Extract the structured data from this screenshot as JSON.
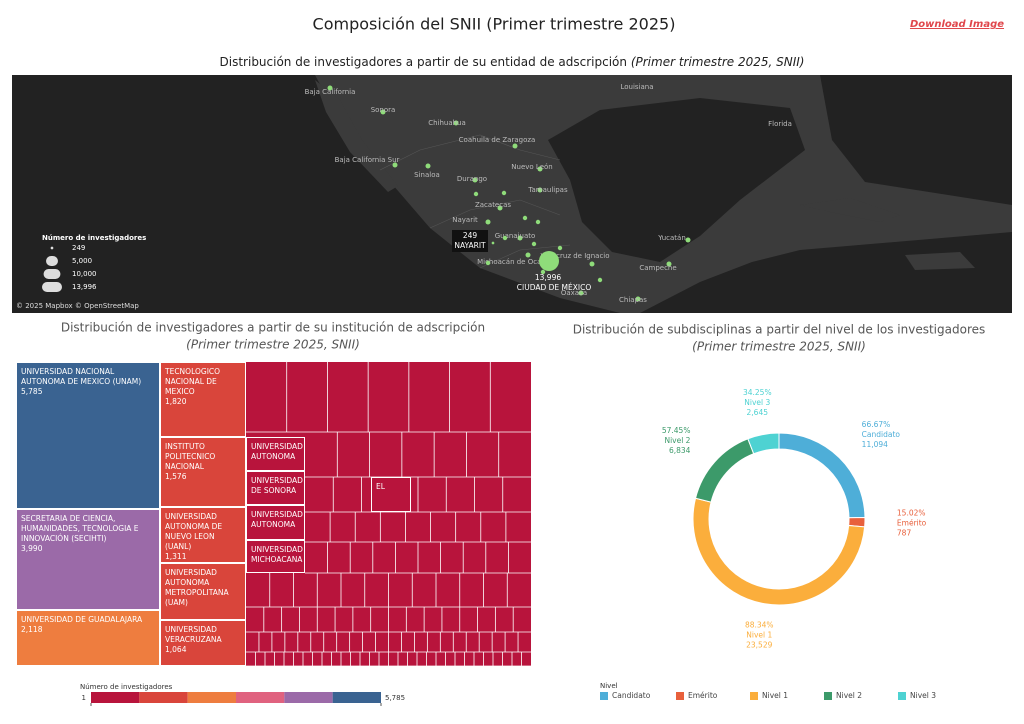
{
  "header": {
    "title": "Composición del SNII (Primer trimestre 2025)",
    "download": "Download Image"
  },
  "chart_data": [
    {
      "type": "map",
      "title": "Distribución de investigadores a partir de su entidad de adscripción",
      "title_note": "(Primer trimestre 2025, SNII)",
      "places": [
        "Baja California",
        "Sonora",
        "Chihuahua",
        "Coahuila de Zaragoza",
        "Nuevo León",
        "Baja California Sur",
        "Sinaloa",
        "Durango",
        "Tamaulipas",
        "Zacatecas",
        "Nayarit",
        "Guanajuato",
        "Michoacán de Ocampo",
        "Veracruz de Ignacio",
        "Campeche",
        "Yucatán",
        "Oaxaca",
        "Chiapas",
        "Louisiana",
        "Florida"
      ],
      "points": [
        {
          "name": "NAYARIT",
          "value": 249
        },
        {
          "name": "CIUDAD DE MÉXICO",
          "value": 13996,
          "value_label": "13,996"
        }
      ],
      "size_legend": {
        "title": "Número de investigadores",
        "values": [
          249,
          {
            "value": 5000,
            "label": "5,000"
          },
          {
            "value": 10000,
            "label": "10,000"
          },
          {
            "value": 13996,
            "label": "13,996"
          }
        ]
      },
      "attribution": "© 2025 Mapbox © OpenStreetMap",
      "marker_color": "#8fdc7a"
    },
    {
      "type": "treemap",
      "title": "Distribución de investigadores a partir de su institución de adscripción",
      "title_note": "(Primer trimestre 2025, SNII)",
      "items": [
        {
          "name": "Universidad Nacional Autonoma de Mexico (UNAM)",
          "value": 5785,
          "value_label": "5,785"
        },
        {
          "name": "Secretaria de Ciencia, Humanidades, Tecnologia e Innovación (SECIHTI)",
          "value": 3990,
          "value_label": "3,990"
        },
        {
          "name": "Universidad de Guadalajara",
          "value": 2118,
          "value_label": "2,118"
        },
        {
          "name": "Tecnologico Nacional de Mexico",
          "value": 1820,
          "value_label": "1,820"
        },
        {
          "name": "Instituto Politecnico Nacional",
          "value": 1576,
          "value_label": "1,576"
        },
        {
          "name": "Universidad Autonoma de Nuevo Leon (UANL)",
          "value": 1311,
          "value_label": "1,311"
        },
        {
          "name": "Universidad Autonoma Metropolitana (UAM)",
          "value": 1150
        },
        {
          "name": "Universidad Veracruzana",
          "value": 1064,
          "value_label": "1,064"
        },
        {
          "name": "Universidad Autonoma",
          "value": 900
        },
        {
          "name": "Universidad de Sonora",
          "value": 860
        },
        {
          "name": "Universidad Autonoma",
          "value": 830
        },
        {
          "name": "Universidad Michoacana",
          "value": 790
        },
        {
          "name": "EL",
          "value": 450
        }
      ],
      "colorbar": {
        "title": "Número de investigadores",
        "ticks": [
          1,
          {
            "value": 5785,
            "label": "5,785"
          }
        ],
        "colors": [
          "#b8143c",
          "#d9453b",
          "#ee7d3f",
          "#e0627f",
          "#9b6aa8",
          "#3a6391"
        ]
      }
    },
    {
      "type": "pie",
      "donut": true,
      "title": "Distribución de subdisciplinas a partir del  nivel  de los investigadores",
      "title_note": "(Primer trimestre 2025,  SNII)",
      "categories": [
        "Candidato",
        "Emérito",
        "Nivel 1",
        "Nivel 2",
        "Nivel 3"
      ],
      "values": [
        11094,
        787,
        23529,
        6834,
        2645
      ],
      "value_labels": [
        "11,094",
        "787",
        "23,529",
        "6,834",
        "2,645"
      ],
      "percents": [
        66.67,
        15.02,
        88.34,
        57.45,
        34.25
      ],
      "percent_labels": [
        "66.67%",
        "15.02%",
        "88.34%",
        "57.45%",
        "34.25%"
      ],
      "colors": [
        "#4eaed8",
        "#e8603c",
        "#fbae3c",
        "#3c9a6a",
        "#4ed2d2"
      ],
      "legend_title": "Nivel"
    }
  ]
}
